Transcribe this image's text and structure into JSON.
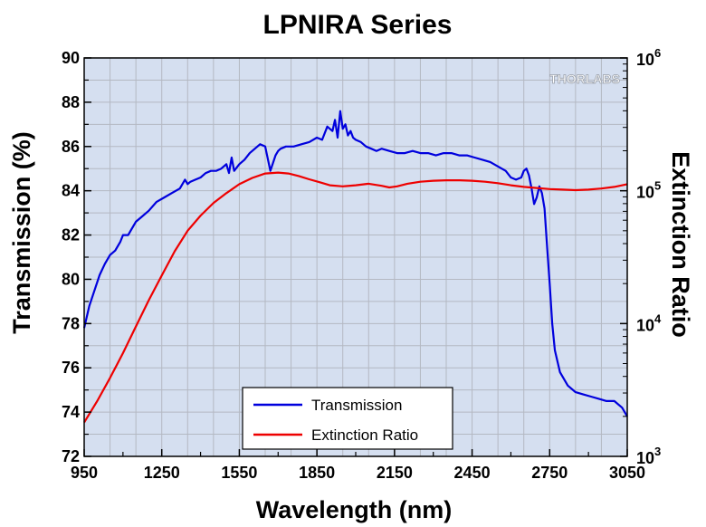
{
  "chart_data": {
    "type": "line",
    "title": "LPNIRA Series",
    "xlabel": "Wavelength (nm)",
    "ylabel": "Transmission (%)",
    "y2label": "Extinction Ratio",
    "xlim": [
      950,
      3050
    ],
    "ylim": [
      72,
      90
    ],
    "y2lim": [
      1000,
      1000000
    ],
    "y2scale": "log",
    "x_ticks": [
      950,
      1250,
      1550,
      1850,
      2150,
      2450,
      2750,
      3050
    ],
    "y_ticks": [
      72,
      74,
      76,
      78,
      80,
      82,
      84,
      86,
      88,
      90
    ],
    "y2_ticks": [
      {
        "base": "10",
        "exp": "3",
        "value": 1000
      },
      {
        "base": "10",
        "exp": "4",
        "value": 10000
      },
      {
        "base": "10",
        "exp": "5",
        "value": 100000
      },
      {
        "base": "10",
        "exp": "6",
        "value": 1000000
      }
    ],
    "grid": true,
    "legend_position": "bottom-center",
    "watermark_text": "THORLABS",
    "plot_background": "#d5dff0",
    "series": [
      {
        "name": "Transmission",
        "axis": "left",
        "color": "#0000dd",
        "x": [
          950,
          970,
          990,
          1010,
          1030,
          1050,
          1070,
          1090,
          1100,
          1120,
          1130,
          1150,
          1170,
          1200,
          1230,
          1260,
          1290,
          1320,
          1340,
          1350,
          1360,
          1380,
          1400,
          1420,
          1440,
          1460,
          1480,
          1500,
          1510,
          1520,
          1530,
          1550,
          1570,
          1590,
          1610,
          1630,
          1650,
          1670,
          1690,
          1700,
          1710,
          1730,
          1760,
          1790,
          1820,
          1850,
          1870,
          1890,
          1910,
          1920,
          1930,
          1940,
          1950,
          1960,
          1970,
          1980,
          1990,
          2000,
          2020,
          2040,
          2060,
          2080,
          2100,
          2130,
          2160,
          2190,
          2220,
          2250,
          2280,
          2310,
          2340,
          2370,
          2400,
          2430,
          2460,
          2490,
          2520,
          2550,
          2580,
          2600,
          2620,
          2640,
          2650,
          2660,
          2670,
          2680,
          2690,
          2700,
          2710,
          2720,
          2730,
          2740,
          2750,
          2760,
          2770,
          2790,
          2820,
          2850,
          2880,
          2910,
          2940,
          2970,
          3000,
          3030,
          3050
        ],
        "y": [
          77.8,
          78.8,
          79.5,
          80.2,
          80.7,
          81.1,
          81.3,
          81.7,
          82.0,
          82.0,
          82.2,
          82.6,
          82.8,
          83.1,
          83.5,
          83.7,
          83.9,
          84.1,
          84.5,
          84.3,
          84.4,
          84.5,
          84.6,
          84.8,
          84.9,
          84.9,
          85.0,
          85.2,
          84.8,
          85.5,
          84.9,
          85.2,
          85.4,
          85.7,
          85.9,
          86.1,
          86.0,
          84.9,
          85.6,
          85.8,
          85.9,
          86.0,
          86.0,
          86.1,
          86.2,
          86.4,
          86.3,
          86.9,
          86.7,
          87.2,
          86.4,
          87.6,
          86.8,
          87.0,
          86.5,
          86.7,
          86.4,
          86.3,
          86.2,
          86.0,
          85.9,
          85.8,
          85.9,
          85.8,
          85.7,
          85.7,
          85.8,
          85.7,
          85.7,
          85.6,
          85.7,
          85.7,
          85.6,
          85.6,
          85.5,
          85.4,
          85.3,
          85.1,
          84.9,
          84.6,
          84.5,
          84.6,
          84.9,
          85.0,
          84.7,
          84.1,
          83.4,
          83.7,
          84.2,
          83.9,
          83.2,
          81.5,
          79.8,
          78.0,
          76.8,
          75.8,
          75.2,
          74.9,
          74.8,
          74.7,
          74.6,
          74.5,
          74.5,
          74.2,
          73.8
        ],
        "x_axis_values_note_removed": null
      },
      {
        "name": "Extinction Ratio",
        "axis": "right",
        "color": "#ee0000",
        "x": [
          950,
          1000,
          1050,
          1100,
          1150,
          1200,
          1250,
          1300,
          1350,
          1400,
          1450,
          1500,
          1550,
          1600,
          1650,
          1700,
          1740,
          1780,
          1820,
          1860,
          1900,
          1950,
          2000,
          2050,
          2100,
          2130,
          2160,
          2200,
          2250,
          2300,
          2350,
          2400,
          2450,
          2500,
          2550,
          2600,
          2650,
          2700,
          2750,
          2800,
          2850,
          2900,
          2950,
          3000,
          3050
        ],
        "y": [
          1800,
          2600,
          3900,
          6000,
          9500,
          15000,
          23000,
          35000,
          50000,
          65000,
          81000,
          96000,
          112000,
          125000,
          135000,
          137000,
          135000,
          129000,
          122000,
          116000,
          110000,
          108000,
          110000,
          113000,
          109000,
          106000,
          108000,
          113000,
          117000,
          119000,
          120000,
          120000,
          119000,
          117000,
          114000,
          110000,
          107000,
          105000,
          103000,
          102000,
          101000,
          102000,
          104000,
          107000,
          112000
        ]
      }
    ]
  }
}
